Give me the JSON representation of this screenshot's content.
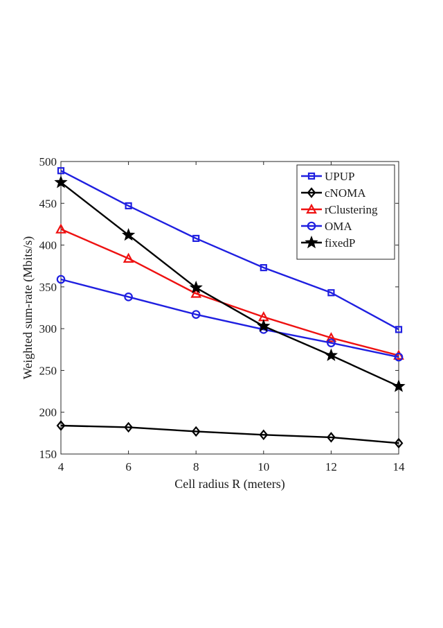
{
  "chart_data": {
    "type": "line",
    "title": "",
    "xlabel": "Cell radius R (meters)",
    "ylabel": "Weighted sum-rate (Mbits/s)",
    "x": [
      4,
      6,
      8,
      10,
      12,
      14
    ],
    "xlim": [
      4,
      14
    ],
    "ylim": [
      150,
      500
    ],
    "xticks": [
      "4",
      "6",
      "8",
      "10",
      "12",
      "14"
    ],
    "yticks": [
      "150",
      "200",
      "250",
      "300",
      "350",
      "400",
      "450",
      "500"
    ],
    "grid": false,
    "legend_position": "top-right",
    "series": [
      {
        "name": "UPUP",
        "color": "#1f1fe0",
        "marker": "square",
        "values": [
          489,
          447,
          408,
          373,
          343,
          299
        ]
      },
      {
        "name": "cNOMA",
        "color": "#000000",
        "marker": "diamond",
        "values": [
          184,
          182,
          177,
          173,
          170,
          163
        ]
      },
      {
        "name": "rClustering",
        "color": "#ee1111",
        "marker": "triangle",
        "values": [
          419,
          384,
          342,
          314,
          289,
          268
        ]
      },
      {
        "name": "OMA",
        "color": "#1f1fe0",
        "marker": "circle",
        "values": [
          359,
          338,
          317,
          299,
          283,
          266
        ]
      },
      {
        "name": "fixedP",
        "color": "#000000",
        "marker": "star",
        "values": [
          475,
          412,
          349,
          303,
          268,
          231
        ]
      }
    ]
  }
}
